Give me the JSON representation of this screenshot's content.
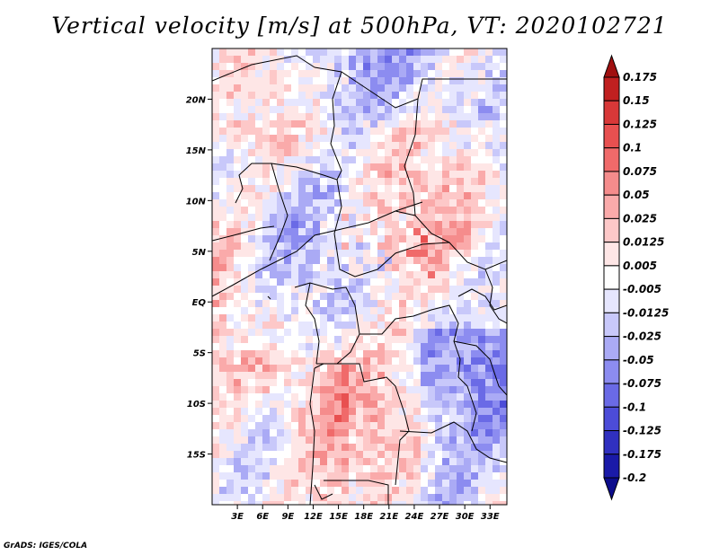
{
  "chart_data": {
    "type": "heatmap",
    "title": "Vertical velocity [m/s] at 500hPa, VT: 2020102721",
    "credit": "GrADS: IGES/COLA",
    "lon_range": [
      0,
      35
    ],
    "lat_range": [
      -20,
      25
    ],
    "x_ticks": [
      {
        "value": 3,
        "label": "3E"
      },
      {
        "value": 6,
        "label": "6E"
      },
      {
        "value": 9,
        "label": "9E"
      },
      {
        "value": 12,
        "label": "12E"
      },
      {
        "value": 15,
        "label": "15E"
      },
      {
        "value": 18,
        "label": "18E"
      },
      {
        "value": 21,
        "label": "21E"
      },
      {
        "value": 24,
        "label": "24E"
      },
      {
        "value": 27,
        "label": "27E"
      },
      {
        "value": 30,
        "label": "30E"
      },
      {
        "value": 33,
        "label": "33E"
      }
    ],
    "y_ticks": [
      {
        "value": 20,
        "label": "20N"
      },
      {
        "value": 15,
        "label": "15N"
      },
      {
        "value": 10,
        "label": "10N"
      },
      {
        "value": 5,
        "label": "5N"
      },
      {
        "value": 0,
        "label": "EQ"
      },
      {
        "value": -5,
        "label": "5S"
      },
      {
        "value": -10,
        "label": "10S"
      },
      {
        "value": -15,
        "label": "15S"
      }
    ],
    "colorbar": {
      "labels": [
        "0.175",
        "0.15",
        "0.125",
        "0.1",
        "0.075",
        "0.05",
        "0.025",
        "0.0125",
        "0.005",
        "-0.005",
        "-0.0125",
        "-0.025",
        "-0.05",
        "-0.075",
        "-0.1",
        "-0.125",
        "-0.175",
        "-0.2"
      ],
      "colors": [
        "#a01010",
        "#c02020",
        "#d83838",
        "#e85050",
        "#f06a6a",
        "#f58c8c",
        "#faaaaa",
        "#fdc8c8",
        "#fee6e6",
        "#ffffff",
        "#e6e6fe",
        "#c8c8fa",
        "#aaaaf5",
        "#8c8cf0",
        "#6a6ae6",
        "#4c4cd8",
        "#3030c0",
        "#1a1aa8",
        "#0c0c8c"
      ]
    }
  }
}
